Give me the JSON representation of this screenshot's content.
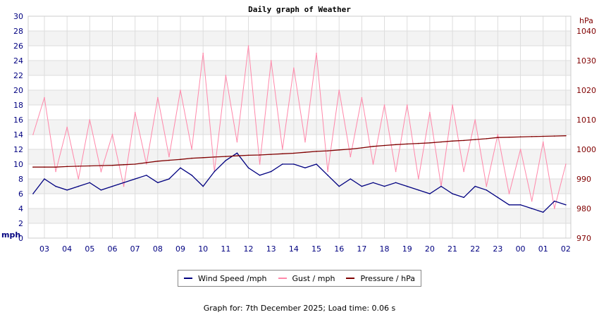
{
  "chart_data": {
    "type": "line",
    "title": "Daily graph of Weather",
    "y_left": {
      "unit_label": "mph",
      "range": [
        0,
        30
      ],
      "ticks": [
        0,
        2,
        4,
        6,
        8,
        10,
        12,
        14,
        16,
        18,
        20,
        22,
        24,
        26,
        28,
        30
      ],
      "color": "#000080"
    },
    "y_right": {
      "unit_label": "hPa",
      "range": [
        970,
        1045
      ],
      "ticks": [
        970,
        980,
        990,
        1000,
        1010,
        1020,
        1030,
        1040
      ],
      "color": "#800000"
    },
    "x_ticks": [
      "03",
      "04",
      "05",
      "06",
      "07",
      "08",
      "09",
      "10",
      "11",
      "12",
      "13",
      "14",
      "15",
      "16",
      "17",
      "18",
      "19",
      "20",
      "21",
      "22",
      "23",
      "00",
      "01",
      "02"
    ],
    "grid": true,
    "legend_placement": "bottom",
    "x": [
      "02:30",
      "03:00",
      "03:30",
      "04:00",
      "04:30",
      "05:00",
      "05:30",
      "06:00",
      "06:30",
      "07:00",
      "07:30",
      "08:00",
      "08:30",
      "09:00",
      "09:30",
      "10:00",
      "10:30",
      "11:00",
      "11:30",
      "12:00",
      "12:30",
      "13:00",
      "13:30",
      "14:00",
      "14:30",
      "15:00",
      "15:30",
      "16:00",
      "16:30",
      "17:00",
      "17:30",
      "18:00",
      "18:30",
      "19:00",
      "19:30",
      "20:00",
      "20:30",
      "21:00",
      "21:30",
      "22:00",
      "22:30",
      "23:00",
      "23:30",
      "00:00",
      "00:30",
      "01:00",
      "01:30",
      "02:00"
    ],
    "series": [
      {
        "name": "Wind Speed /mph",
        "axis": "left",
        "color": "#000080",
        "values": [
          6,
          8,
          7,
          6.5,
          7,
          7.5,
          6.5,
          7,
          7.5,
          8,
          8.5,
          7.5,
          8,
          9.5,
          8.5,
          7,
          9,
          10.5,
          11.5,
          9.5,
          8.5,
          9,
          10,
          10,
          9.5,
          10,
          8.5,
          7,
          8,
          7,
          7.5,
          7,
          7.5,
          7,
          6.5,
          6,
          7,
          6,
          5.5,
          7,
          6.5,
          5.5,
          4.5,
          4.5,
          4,
          3.5,
          5,
          4.5
        ]
      },
      {
        "name": "Gust / mph",
        "axis": "left",
        "color": "#ff88aa",
        "values": [
          14,
          19,
          9,
          15,
          8,
          16,
          9,
          14,
          7,
          17,
          10,
          19,
          11,
          20,
          12,
          25,
          9,
          22,
          13,
          26,
          10,
          24,
          12,
          23,
          13,
          25,
          9,
          20,
          11,
          19,
          10,
          18,
          9,
          18,
          8,
          17,
          7,
          18,
          9,
          16,
          7,
          14,
          6,
          12,
          5,
          13,
          4,
          10
        ]
      },
      {
        "name": "Pressure / hPa",
        "axis": "right",
        "color": "#800000",
        "values": [
          994,
          994,
          994,
          994.2,
          994.3,
          994.4,
          994.5,
          994.6,
          994.8,
          995,
          995.5,
          996,
          996.3,
          996.6,
          997,
          997.2,
          997.4,
          997.6,
          997.8,
          998,
          998.1,
          998.3,
          998.5,
          998.7,
          999,
          999.3,
          999.5,
          999.8,
          1000.1,
          1000.5,
          1001,
          1001.3,
          1001.6,
          1001.8,
          1002,
          1002.2,
          1002.5,
          1002.8,
          1003,
          1003.3,
          1003.6,
          1004,
          1004.1,
          1004.2,
          1004.3,
          1004.4,
          1004.5,
          1004.6
        ]
      }
    ]
  },
  "footer": "Graph for: 7th December 2025; Load time: 0.06 s"
}
